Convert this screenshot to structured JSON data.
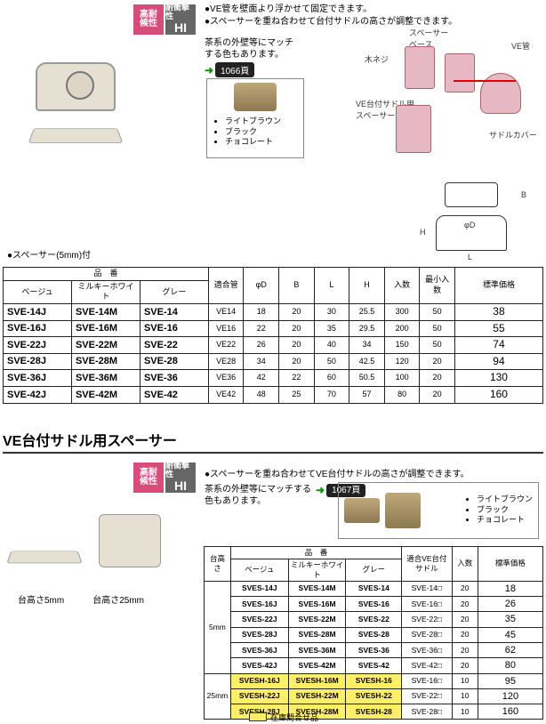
{
  "badges": {
    "tai1": "高耐",
    "tai2": "候性",
    "hi1": "耐衝撃性",
    "hi2": "HI"
  },
  "top_bullets": [
    "●VE管を壁面より浮かせて固定できます。",
    "●スペーサーを重ね合わせて台付サドルの高さが調整できます。"
  ],
  "sub_note": "茶系の外壁等にマッチ\nする色もあります。",
  "page_ref_1": "1066頁",
  "color_names": [
    "ライトブラウン",
    "ブラック",
    "チョコレート"
  ],
  "spacer_caption": "●スペーサー(5mm)付",
  "diagram_labels": {
    "spacer_base": "スペーサー\nベース",
    "screw": "木ネジ",
    "ve": "VE管",
    "sad": "VE台付サドル用\nスペーサー",
    "cover": "サドルカバー"
  },
  "table1": {
    "headgroup": "品　番",
    "subheads": [
      "ベージュ",
      "ミルキーホワイト",
      "グレー"
    ],
    "cols": [
      "適合管",
      "φD",
      "B",
      "L",
      "H",
      "入数",
      "最小入数",
      "標準価格"
    ],
    "rows": [
      {
        "c": [
          "SVE-14J",
          "SVE-14M",
          "SVE-14",
          "VE14",
          "18",
          "20",
          "30",
          "25.5",
          "300",
          "50",
          "38"
        ]
      },
      {
        "c": [
          "SVE-16J",
          "SVE-16M",
          "SVE-16",
          "VE16",
          "22",
          "20",
          "35",
          "29.5",
          "200",
          "50",
          "55"
        ]
      },
      {
        "c": [
          "SVE-22J",
          "SVE-22M",
          "SVE-22",
          "VE22",
          "26",
          "20",
          "40",
          "34",
          "150",
          "50",
          "74"
        ]
      },
      {
        "c": [
          "SVE-28J",
          "SVE-28M",
          "SVE-28",
          "VE28",
          "34",
          "20",
          "50",
          "42.5",
          "120",
          "20",
          "94"
        ]
      },
      {
        "c": [
          "SVE-36J",
          "SVE-36M",
          "SVE-36",
          "VE36",
          "42",
          "22",
          "60",
          "50.5",
          "100",
          "20",
          "130"
        ]
      },
      {
        "c": [
          "SVE-42J",
          "SVE-42M",
          "SVE-42",
          "VE42",
          "48",
          "25",
          "70",
          "57",
          "80",
          "20",
          "160"
        ]
      }
    ]
  },
  "sec2_title": "VE台付サドル用スペーサー",
  "sec2_bullet": "●スペーサーを重ね合わせてVE台付サドルの高さが調整できます。",
  "sec2_note": "茶系の外壁等にマッチする\n色もあります。",
  "page_ref_2": "1067頁",
  "prod2_labels": {
    "a": "台高さ5mm",
    "b": "台高さ25mm"
  },
  "table2": {
    "headgroup": "品　番",
    "subheads": [
      "ベージュ",
      "ミルキーホワイト",
      "グレー"
    ],
    "left_head": "台高さ",
    "cols": [
      "適合VE台付\nサドル",
      "入数",
      "標準価格"
    ],
    "groups": [
      {
        "h": "5mm",
        "rows": [
          {
            "c": [
              "SVES-14J",
              "SVES-14M",
              "SVES-14",
              "SVE-14□",
              "20",
              "18"
            ],
            "hl": false
          },
          {
            "c": [
              "SVES-16J",
              "SVES-16M",
              "SVES-16",
              "SVE-16□",
              "20",
              "26"
            ],
            "hl": false
          },
          {
            "c": [
              "SVES-22J",
              "SVES-22M",
              "SVES-22",
              "SVE-22□",
              "20",
              "35"
            ],
            "hl": false
          },
          {
            "c": [
              "SVES-28J",
              "SVES-28M",
              "SVES-28",
              "SVE-28□",
              "20",
              "45"
            ],
            "hl": false
          },
          {
            "c": [
              "SVES-36J",
              "SVES-36M",
              "SVES-36",
              "SVE-36□",
              "20",
              "62"
            ],
            "hl": false
          },
          {
            "c": [
              "SVES-42J",
              "SVES-42M",
              "SVES-42",
              "SVE-42□",
              "20",
              "80"
            ],
            "hl": false
          }
        ]
      },
      {
        "h": "25mm",
        "rows": [
          {
            "c": [
              "SVESH-16J",
              "SVESH-16M",
              "SVESH-16",
              "SVE-16□",
              "10",
              "95"
            ],
            "hl": true
          },
          {
            "c": [
              "SVESH-22J",
              "SVESH-22M",
              "SVESH-22",
              "SVE-22□",
              "10",
              "120"
            ],
            "hl": true
          },
          {
            "c": [
              "SVESH-28J",
              "SVESH-28M",
              "SVESH-28",
              "SVE-28□",
              "10",
              "160"
            ],
            "hl": true
          }
        ]
      }
    ]
  },
  "stock_note": "在庫問合せ品"
}
